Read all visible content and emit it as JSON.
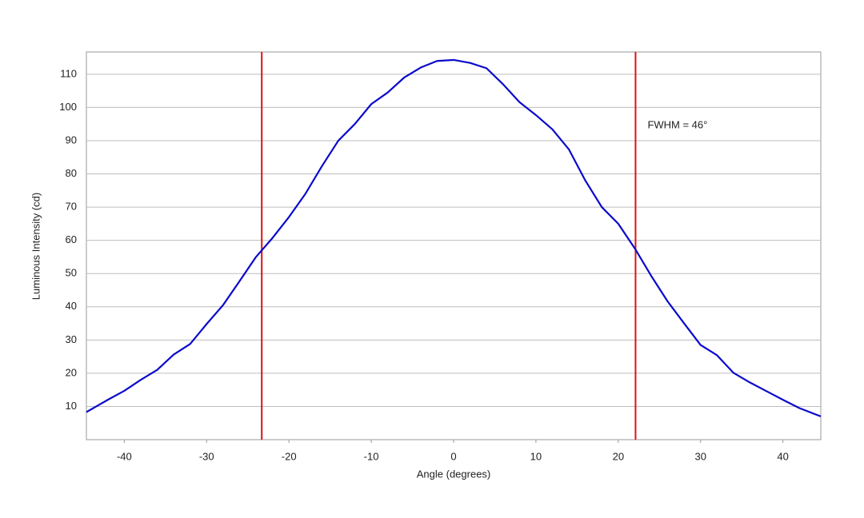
{
  "chart_data": {
    "type": "line",
    "xlabel": "Angle (degrees)",
    "ylabel": "Luminous Intensity (cd)",
    "annotation": "FWHM = 46°",
    "x": [
      -44.6,
      -42,
      -40,
      -38,
      -36,
      -34,
      -32,
      -30,
      -28,
      -26,
      -24,
      -22,
      -20,
      -18,
      -16,
      -14,
      -12,
      -10,
      -8,
      -6,
      -4,
      -2,
      0,
      2,
      4,
      6,
      8,
      10,
      12,
      14,
      16,
      18,
      20,
      22,
      24,
      26,
      28,
      30,
      32,
      34,
      36,
      38,
      40,
      42,
      44.6
    ],
    "series": [
      {
        "name": "Luminous Intensity",
        "color": "#0a0acc",
        "values": [
          8.3,
          12,
          14.7,
          18,
          21,
          25.6,
          28.8,
          34.8,
          40.5,
          47.7,
          55,
          60.7,
          67,
          74,
          82.3,
          90,
          95,
          101,
          104.5,
          109,
          112,
          114,
          114.3,
          113.4,
          111.8,
          107,
          101.6,
          97.7,
          93.4,
          87.4,
          78,
          70,
          65,
          57.6,
          49.3,
          41.6,
          35,
          28.5,
          25.4,
          20.1,
          17.2,
          14.6,
          12,
          9.5,
          7
        ]
      }
    ],
    "vlines": [
      -23.3,
      22.1
    ],
    "vline_color": "#e01010",
    "xlim": [
      -44.6,
      44.6
    ],
    "ylim": [
      0,
      116.7
    ],
    "xticks": [
      -40,
      -30,
      -20,
      -10,
      0,
      10,
      20,
      30,
      40
    ],
    "yticks": [
      10,
      20,
      30,
      40,
      50,
      60,
      70,
      80,
      90,
      100,
      110
    ],
    "grid": true
  }
}
